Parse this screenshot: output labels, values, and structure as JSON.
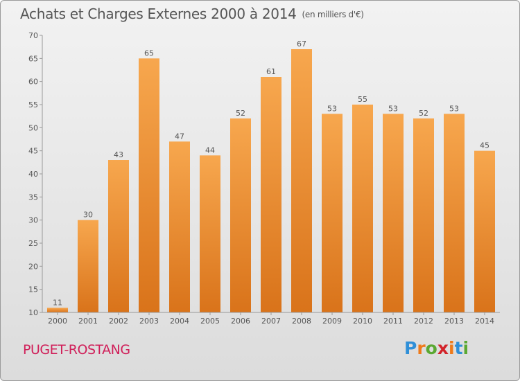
{
  "title": "Achats et Charges Externes 2000 à 2014",
  "unit_note": "(en milliers d'€)",
  "commune": "PUGET-ROSTANG",
  "logo": {
    "text": "Proxiti",
    "letter_colors": [
      "#2f8fd8",
      "#ef7a1a",
      "#5aa832",
      "#d2232a",
      "#ef7a1a",
      "#2f8fd8",
      "#5aa832"
    ]
  },
  "colors": {
    "bar_top": "#f7a74e",
    "bar_bottom": "#d9731a",
    "axis": "#999999",
    "text": "#555555",
    "commune": "#d0205a"
  },
  "chart_data": {
    "type": "bar",
    "categories": [
      "2000",
      "2001",
      "2002",
      "2003",
      "2004",
      "2005",
      "2006",
      "2007",
      "2008",
      "2009",
      "2010",
      "2011",
      "2012",
      "2013",
      "2014"
    ],
    "values": [
      11,
      30,
      43,
      65,
      47,
      44,
      52,
      61,
      67,
      53,
      55,
      53,
      52,
      53,
      45
    ],
    "data_labels": [
      "11",
      "30",
      "43",
      "65",
      "47",
      "44",
      "52",
      "61",
      "67",
      "53",
      "55",
      "53",
      "52",
      "53",
      "45"
    ],
    "y_ticks": [
      "10",
      "15",
      "20",
      "25",
      "30",
      "35",
      "40",
      "45",
      "50",
      "55",
      "60",
      "65",
      "70"
    ],
    "ylim": [
      10,
      70
    ],
    "grid": false,
    "legend": "none"
  }
}
